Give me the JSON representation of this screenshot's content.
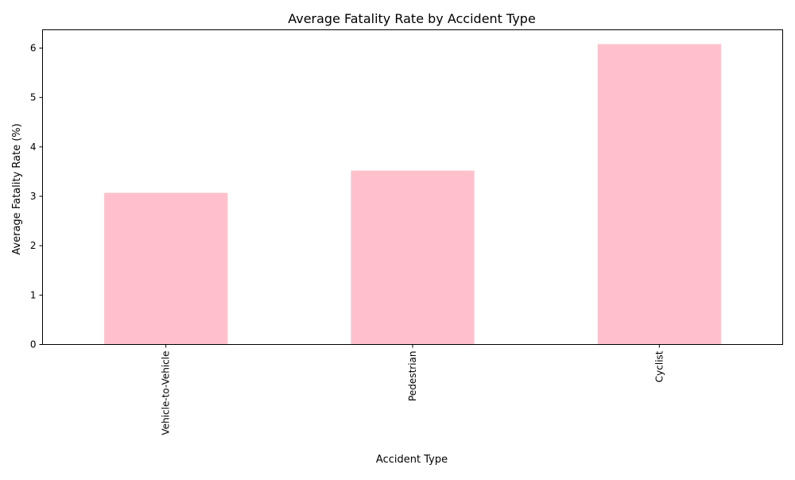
{
  "chart_data": {
    "type": "bar",
    "title": "Average Fatality Rate by Accident Type",
    "xlabel": "Accident Type",
    "ylabel": "Average Fatality Rate (%)",
    "categories": [
      "Vehicle-to-Vehicle",
      "Pedestrian",
      "Cyclist"
    ],
    "values": [
      3.07,
      3.52,
      6.08
    ],
    "ylim": [
      0,
      6.37
    ],
    "yticks": [
      0,
      1,
      2,
      3,
      4,
      5,
      6
    ],
    "grid": false,
    "legend": "none",
    "bar_color": "#ffc0cb",
    "x_tick_rotation": "vertical"
  }
}
